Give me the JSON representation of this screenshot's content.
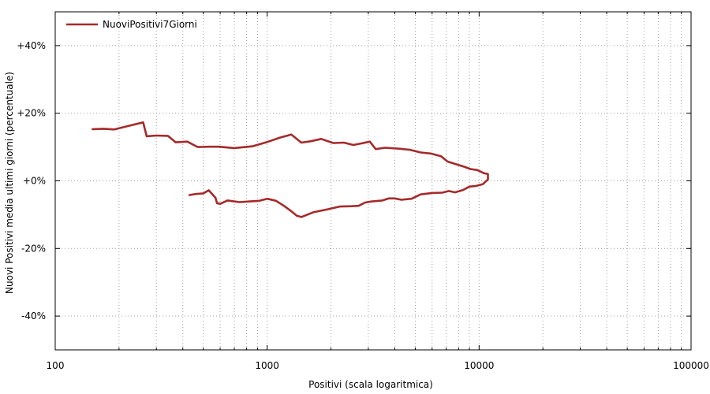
{
  "chart_data": {
    "type": "line",
    "xlabel": "Positivi (scala logaritmica)",
    "ylabel": "Nuovi Positivi media ultimi giorni (percentuale)",
    "x_scale": "log",
    "xlim": [
      100,
      100000
    ],
    "ylim": [
      -50,
      50
    ],
    "x_ticks": [
      {
        "value": 100,
        "label": "100"
      },
      {
        "value": 1000,
        "label": "1000"
      },
      {
        "value": 10000,
        "label": "10000"
      },
      {
        "value": 100000,
        "label": "100000"
      }
    ],
    "y_ticks": [
      {
        "value": 40,
        "label": "+40%"
      },
      {
        "value": 20,
        "label": "+20%"
      },
      {
        "value": 0,
        "label": "+0%"
      },
      {
        "value": -20,
        "label": "-20%"
      },
      {
        "value": -40,
        "label": "-40%"
      }
    ],
    "grid": true,
    "legend_position": "top-left",
    "series": [
      {
        "name": "NuoviPositivi7Giorni",
        "color": "#a52a2a",
        "points": [
          [
            150,
            15.3
          ],
          [
            170,
            15.4
          ],
          [
            190,
            15.2
          ],
          [
            220,
            16.2
          ],
          [
            260,
            17.3
          ],
          [
            270,
            13.2
          ],
          [
            300,
            13.4
          ],
          [
            340,
            13.3
          ],
          [
            370,
            11.4
          ],
          [
            420,
            11.6
          ],
          [
            470,
            10.0
          ],
          [
            530,
            10.1
          ],
          [
            590,
            10.1
          ],
          [
            700,
            9.7
          ],
          [
            850,
            10.2
          ],
          [
            1000,
            11.5
          ],
          [
            1150,
            12.8
          ],
          [
            1300,
            13.7
          ],
          [
            1450,
            11.3
          ],
          [
            1600,
            11.7
          ],
          [
            1800,
            12.4
          ],
          [
            2050,
            11.2
          ],
          [
            2300,
            11.3
          ],
          [
            2550,
            10.6
          ],
          [
            2800,
            11.1
          ],
          [
            3050,
            11.6
          ],
          [
            3250,
            9.4
          ],
          [
            3600,
            9.8
          ],
          [
            4200,
            9.5
          ],
          [
            4700,
            9.2
          ],
          [
            5300,
            8.4
          ],
          [
            5900,
            8.1
          ],
          [
            6600,
            7.3
          ],
          [
            7100,
            5.7
          ],
          [
            7800,
            4.9
          ],
          [
            8400,
            4.3
          ],
          [
            9100,
            3.5
          ],
          [
            9800,
            3.2
          ],
          [
            10500,
            2.3
          ],
          [
            11000,
            2.0
          ],
          [
            11000,
            0.4
          ],
          [
            10400,
            -1.0
          ],
          [
            9700,
            -1.5
          ],
          [
            9000,
            -1.7
          ],
          [
            8400,
            -2.7
          ],
          [
            7700,
            -3.4
          ],
          [
            7200,
            -3.0
          ],
          [
            6700,
            -3.5
          ],
          [
            6000,
            -3.6
          ],
          [
            5300,
            -4.0
          ],
          [
            4800,
            -5.3
          ],
          [
            4300,
            -5.6
          ],
          [
            4000,
            -5.2
          ],
          [
            3750,
            -5.2
          ],
          [
            3500,
            -5.8
          ],
          [
            3100,
            -6.1
          ],
          [
            2900,
            -6.4
          ],
          [
            2700,
            -7.4
          ],
          [
            2500,
            -7.5
          ],
          [
            2200,
            -7.6
          ],
          [
            1900,
            -8.5
          ],
          [
            1650,
            -9.3
          ],
          [
            1450,
            -10.7
          ],
          [
            1380,
            -10.3
          ],
          [
            1300,
            -9.0
          ],
          [
            1200,
            -7.4
          ],
          [
            1100,
            -5.9
          ],
          [
            1000,
            -5.3
          ],
          [
            920,
            -5.9
          ],
          [
            820,
            -6.1
          ],
          [
            740,
            -6.3
          ],
          [
            650,
            -5.8
          ],
          [
            600,
            -6.8
          ],
          [
            580,
            -6.6
          ],
          [
            570,
            -5.0
          ],
          [
            530,
            -2.8
          ],
          [
            500,
            -3.7
          ],
          [
            460,
            -3.9
          ],
          [
            430,
            -4.2
          ]
        ]
      }
    ]
  }
}
